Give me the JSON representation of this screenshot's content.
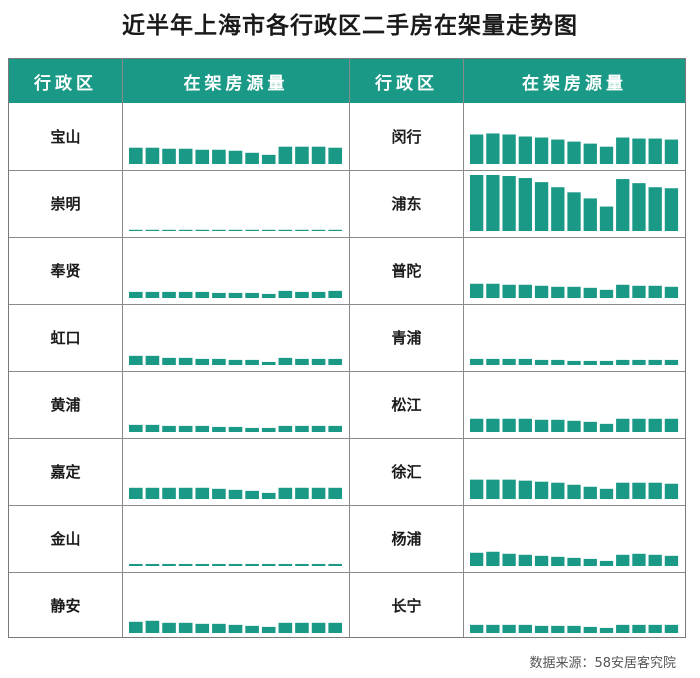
{
  "title": "近半年上海市各行政区二手房在架量走势图",
  "source": "数据来源：58安居客究院",
  "colors": {
    "bar": "#1a9a86",
    "header_bg": "#1a9a86",
    "header_text": "#ffffff"
  },
  "headers": {
    "district": "行政区",
    "listing": "在架房源量"
  },
  "chart_data": {
    "type": "bar",
    "note_scale": "relative bar heights per district, shared scale",
    "columns": [
      [
        {
          "name": "宝山",
          "values": [
            16,
            16,
            15,
            15,
            14,
            14,
            13,
            11,
            9,
            17,
            17,
            17,
            16
          ]
        },
        {
          "name": "崇明",
          "values": [
            1,
            1,
            1,
            1,
            1,
            1,
            1,
            1,
            1,
            1,
            1,
            1,
            1
          ]
        },
        {
          "name": "奉贤",
          "values": [
            6,
            6,
            6,
            6,
            6,
            5,
            5,
            5,
            4,
            7,
            6,
            6,
            7
          ]
        },
        {
          "name": "虹口",
          "values": [
            9,
            9,
            7,
            7,
            6,
            6,
            5,
            5,
            3,
            7,
            6,
            6,
            6
          ]
        },
        {
          "name": "黄浦",
          "values": [
            7,
            7,
            6,
            6,
            6,
            5,
            5,
            4,
            4,
            6,
            6,
            6,
            6
          ]
        },
        {
          "name": "嘉定",
          "values": [
            11,
            11,
            11,
            11,
            11,
            10,
            9,
            8,
            6,
            11,
            11,
            11,
            11
          ]
        },
        {
          "name": "金山",
          "values": [
            2,
            2,
            2,
            2,
            2,
            2,
            2,
            2,
            2,
            2,
            2,
            2,
            2
          ]
        },
        {
          "name": "静安",
          "values": [
            11,
            12,
            10,
            10,
            9,
            9,
            8,
            7,
            6,
            10,
            10,
            10,
            10
          ]
        }
      ],
      [
        {
          "name": "闵行",
          "values": [
            29,
            30,
            29,
            27,
            26,
            24,
            22,
            20,
            17,
            26,
            25,
            25,
            24
          ]
        },
        {
          "name": "浦东",
          "values": [
            55,
            55,
            54,
            52,
            48,
            43,
            38,
            32,
            24,
            51,
            47,
            43,
            42
          ]
        },
        {
          "name": "普陀",
          "values": [
            14,
            14,
            13,
            13,
            12,
            11,
            11,
            10,
            8,
            13,
            12,
            12,
            11
          ]
        },
        {
          "name": "青浦",
          "values": [
            6,
            6,
            6,
            6,
            5,
            5,
            4,
            4,
            4,
            5,
            5,
            5,
            5
          ]
        },
        {
          "name": "松江",
          "values": [
            13,
            13,
            13,
            13,
            12,
            12,
            11,
            10,
            8,
            13,
            13,
            13,
            13
          ]
        },
        {
          "name": "徐汇",
          "values": [
            19,
            19,
            19,
            18,
            17,
            16,
            14,
            12,
            10,
            16,
            16,
            16,
            15
          ]
        },
        {
          "name": "杨浦",
          "values": [
            13,
            14,
            12,
            11,
            10,
            9,
            8,
            7,
            5,
            11,
            12,
            11,
            10
          ]
        },
        {
          "name": "长宁",
          "values": [
            8,
            8,
            8,
            8,
            7,
            7,
            7,
            6,
            5,
            8,
            8,
            8,
            8
          ]
        }
      ]
    ]
  }
}
